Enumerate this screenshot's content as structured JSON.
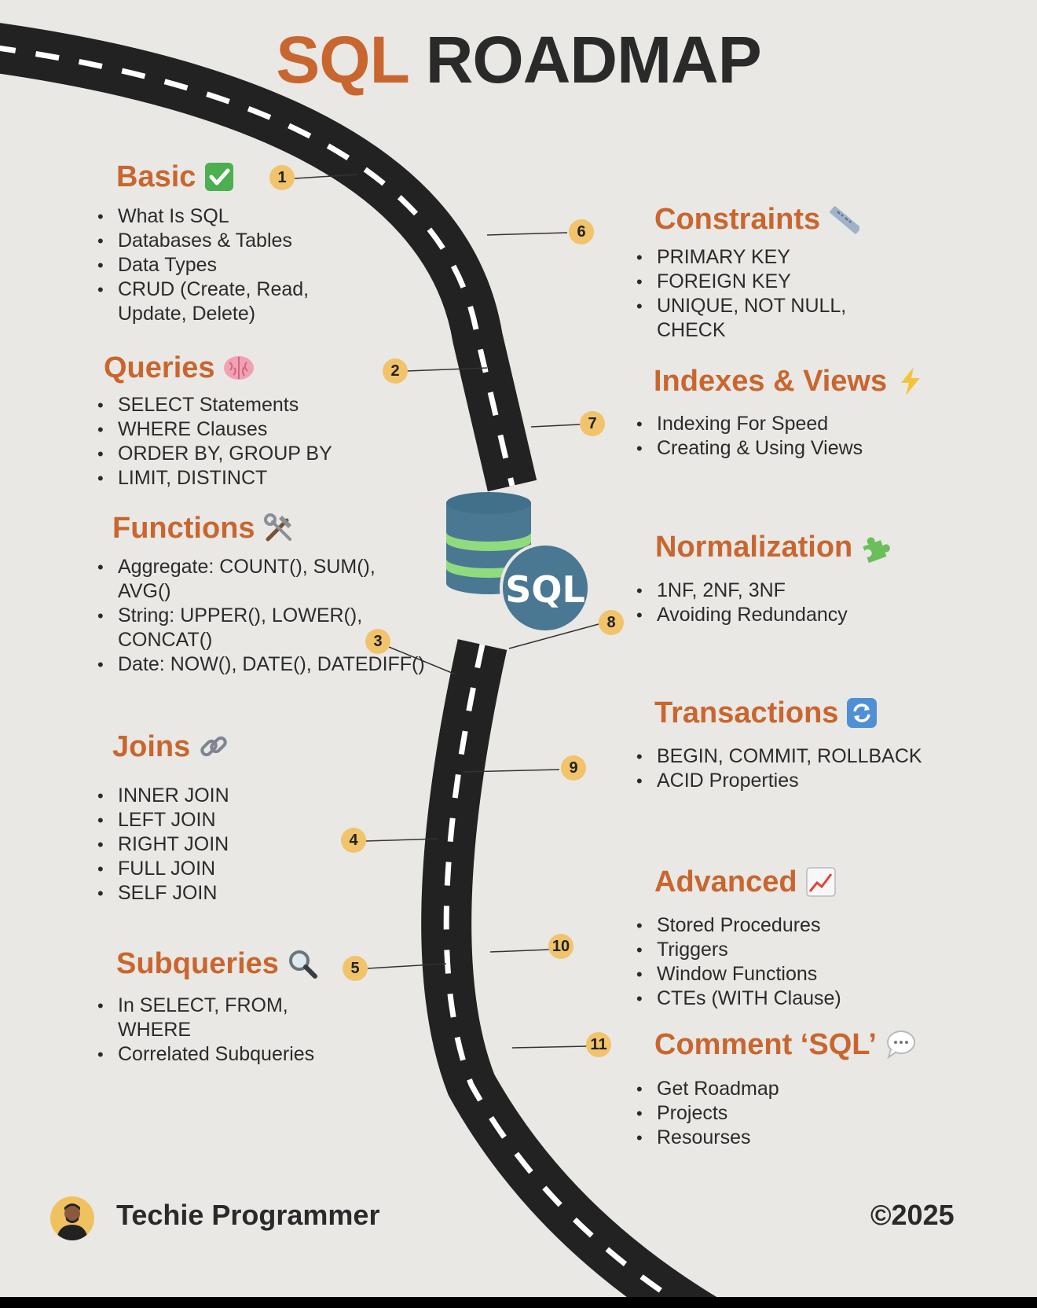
{
  "title": {
    "part1": "SQL",
    "part2": "ROADMAP"
  },
  "center_logo": {
    "label": "SQL",
    "icon": "database-icon"
  },
  "sections": {
    "basic": {
      "number": "1",
      "title": "Basic",
      "icon": "check-mark-icon",
      "items": [
        "What Is SQL",
        "Databases & Tables",
        "Data Types",
        "CRUD (Create, Read, Update, Delete)"
      ]
    },
    "queries": {
      "number": "2",
      "title": "Queries",
      "icon": "brain-icon",
      "items": [
        "SELECT Statements",
        "WHERE Clauses",
        "ORDER BY, GROUP BY",
        "LIMIT, DISTINCT"
      ]
    },
    "functions": {
      "number": "3",
      "title": "Functions",
      "icon": "tools-icon",
      "items": [
        "Aggregate: COUNT(), SUM(), AVG()",
        "String: UPPER(), LOWER(), CONCAT()",
        "Date: NOW(), DATE(), DATEDIFF()"
      ]
    },
    "joins": {
      "number": "4",
      "title": "Joins",
      "icon": "link-icon",
      "items": [
        "INNER JOIN",
        "LEFT JOIN",
        "RIGHT JOIN",
        "FULL JOIN",
        "SELF JOIN"
      ]
    },
    "subqueries": {
      "number": "5",
      "title": "Subqueries",
      "icon": "magnifier-icon",
      "items": [
        "In SELECT, FROM, WHERE",
        "Correlated Subqueries"
      ]
    },
    "constraints": {
      "number": "6",
      "title": "Constraints",
      "icon": "ruler-icon",
      "items": [
        "PRIMARY KEY",
        "FOREIGN KEY",
        "UNIQUE, NOT NULL, CHECK"
      ]
    },
    "indexes": {
      "number": "7",
      "title": "Indexes & Views",
      "icon": "lightning-icon",
      "items": [
        "Indexing For Speed",
        "Creating & Using Views"
      ]
    },
    "normalization": {
      "number": "8",
      "title": "Normalization",
      "icon": "puzzle-icon",
      "items": [
        "1NF, 2NF, 3NF",
        "Avoiding Redundancy"
      ]
    },
    "transactions": {
      "number": "9",
      "title": "Transactions",
      "icon": "refresh-icon",
      "items": [
        "BEGIN, COMMIT, ROLLBACK",
        "ACID Properties"
      ]
    },
    "advanced": {
      "number": "10",
      "title": "Advanced",
      "icon": "chart-icon",
      "items": [
        "Stored Procedures",
        "Triggers",
        "Window Functions",
        "CTEs (WITH Clause)"
      ]
    },
    "comment": {
      "number": "11",
      "title": "Comment ‘SQL’",
      "icon": "speech-bubble-icon",
      "items": [
        "Get Roadmap",
        "Projects",
        "Resourses"
      ]
    }
  },
  "footer": {
    "author": "Techie Programmer",
    "copyright": "©2025",
    "avatar_icon": "avatar-icon"
  },
  "colors": {
    "accent": "#c9662f",
    "badge": "#f1c36b",
    "road": "#222222",
    "db_blue": "#4a7892",
    "db_green": "#8fdc7f",
    "background": "#e9e8e5"
  }
}
